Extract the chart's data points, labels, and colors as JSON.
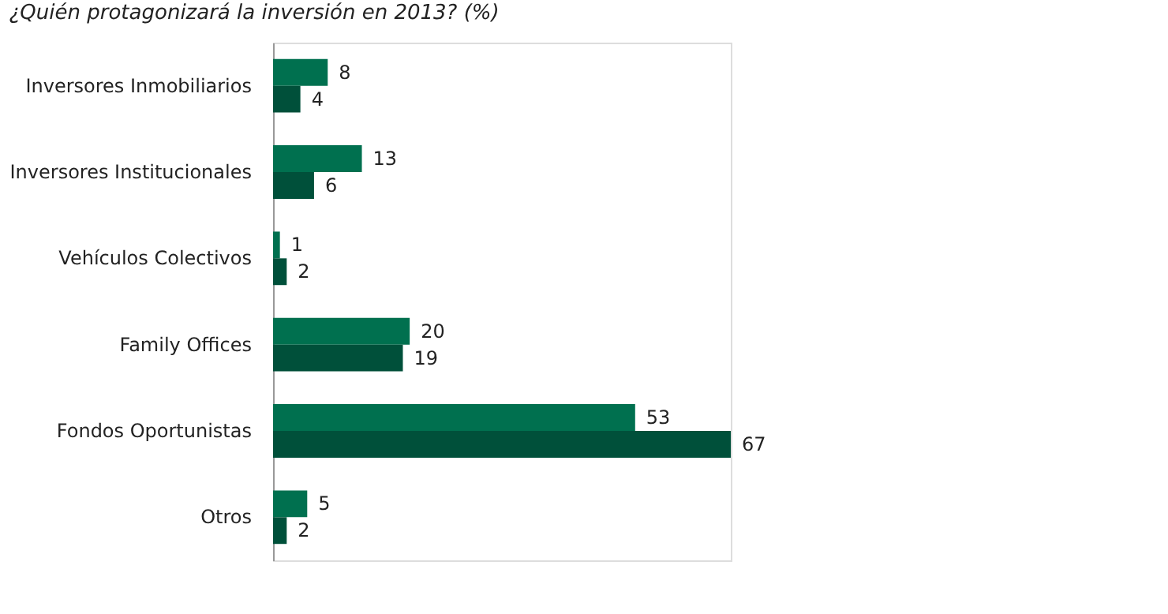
{
  "chart_data": {
    "type": "bar",
    "orientation": "horizontal",
    "title": "¿Quién protagonizará la inversión en 2013? (%)",
    "categories": [
      "Inversores Inmobiliarios",
      "Inversores Institucionales",
      "Vehículos Colectivos",
      "Family Offices",
      "Fondos Oportunistas",
      "Otros"
    ],
    "series": [
      {
        "color": "#00704f",
        "values": [
          8,
          13,
          1,
          20,
          53,
          5
        ]
      },
      {
        "color": "#00503a",
        "values": [
          4,
          6,
          2,
          19,
          67,
          2
        ]
      }
    ],
    "data_labels": true,
    "grid": false
  }
}
